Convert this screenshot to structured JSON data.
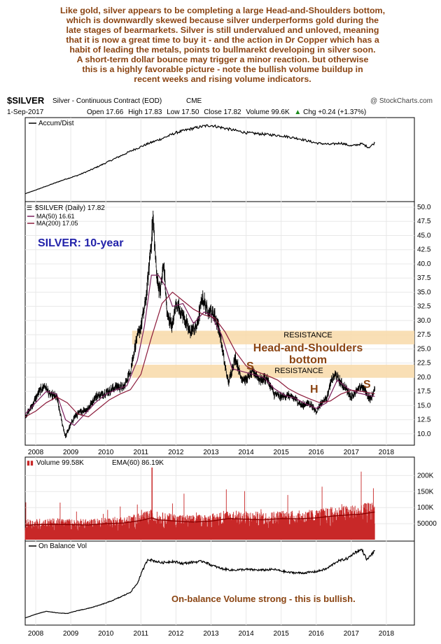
{
  "commentary": [
    "Like gold, silver appears to be completing a large Head-and-Shoulders bottom,",
    "which is downwardly skewed because silver underperforms gold during the",
    "late stages of bearmarkets. Silver is still undervalued and unloved, meaning",
    "that it is now a great time to buy it - and the action in Dr Copper which has a",
    "habit of leading the metals, points to bullmarekt developing in silver soon.",
    "A short-term dollar bounce may trigger a minor reaction. but otherwise",
    "this is a highly favorable picture - note the bullish volume buildup in",
    "recent weeks and rising volume indicators."
  ],
  "header": {
    "symbol": "$SILVER",
    "name": "Silver - Continuous Contract (EOD)",
    "exchange": "CME",
    "copyright": "@ StockCharts.com",
    "date": "1-Sep-2017",
    "open_label": "Open",
    "open": "17.66",
    "high_label": "High",
    "high": "17.83",
    "low_label": "Low",
    "low": "17.50",
    "close_label": "Close",
    "close": "17.82",
    "volume_label": "Volume",
    "volume": "99.6K",
    "chg_label": "Chg",
    "chg": "+0.24 (+1.37%)",
    "chg_arrow": "▲"
  },
  "colors": {
    "price": "#000000",
    "ma50": "#7b1f5c",
    "ma200": "#8b1a3a",
    "volume": "#c82828",
    "ema60": "#8b0000",
    "resistance": "#f8d9a8",
    "annotation_blue": "#2222aa",
    "annotation_brown": "#8b4513",
    "grid": "#e8e8e8"
  },
  "chart_data": [
    {
      "type": "line",
      "panel": "Accumulation/Distribution",
      "legend": "Accum/Dist",
      "x": [
        2007.7,
        2008.0,
        2008.4,
        2008.8,
        2009.2,
        2009.6,
        2010.0,
        2010.4,
        2010.8,
        2011.2,
        2011.6,
        2012.0,
        2012.4,
        2012.8,
        2013.0,
        2013.3,
        2013.6,
        2014.0,
        2014.5,
        2015.0,
        2015.5,
        2016.0,
        2016.4,
        2016.7,
        2017.0,
        2017.3,
        2017.5,
        2017.67
      ],
      "y": [
        5,
        10,
        17,
        24,
        30,
        38,
        47,
        56,
        65,
        73,
        80,
        88,
        93,
        97,
        98,
        95,
        92,
        88,
        86,
        84,
        80,
        74,
        72,
        74,
        70,
        73,
        68,
        74
      ]
    },
    {
      "type": "line",
      "panel": "Price",
      "title": "$SILVER (Daily) 17.82",
      "annotation_title": "SILVER: 10-year",
      "ylim": [
        8,
        50
      ],
      "y_ticks": [
        10.0,
        12.5,
        15.0,
        17.5,
        20.0,
        22.5,
        25.0,
        27.5,
        30.0,
        32.5,
        35.0,
        37.5,
        40.0,
        42.5,
        45.0,
        47.5,
        50.0
      ],
      "x_ticks": [
        "2008",
        "2009",
        "2010",
        "2011",
        "2012",
        "2013",
        "2014",
        "2015",
        "2016",
        "2017",
        "2018"
      ],
      "series": [
        {
          "name": "$SILVER (Daily)",
          "x": [
            2007.7,
            2007.9,
            2008.1,
            2008.25,
            2008.4,
            2008.6,
            2008.75,
            2008.85,
            2008.95,
            2009.1,
            2009.3,
            2009.5,
            2009.7,
            2009.9,
            2010.1,
            2010.3,
            2010.5,
            2010.7,
            2010.85,
            2011.0,
            2011.15,
            2011.3,
            2011.35,
            2011.45,
            2011.55,
            2011.65,
            2011.75,
            2011.9,
            2012.0,
            2012.2,
            2012.4,
            2012.6,
            2012.75,
            2012.9,
            2013.1,
            2013.25,
            2013.4,
            2013.5,
            2013.6,
            2013.7,
            2013.85,
            2014.0,
            2014.2,
            2014.4,
            2014.6,
            2014.8,
            2015.0,
            2015.2,
            2015.4,
            2015.6,
            2015.8,
            2016.0,
            2016.15,
            2016.3,
            2016.45,
            2016.55,
            2016.7,
            2016.85,
            2017.0,
            2017.15,
            2017.3,
            2017.45,
            2017.55,
            2017.67
          ],
          "y": [
            13.0,
            15.0,
            17.5,
            18.5,
            17.0,
            16.5,
            12.0,
            9.5,
            11.0,
            13.0,
            14.0,
            14.5,
            16.5,
            17.0,
            17.5,
            18.5,
            18.0,
            21.0,
            26.0,
            29.0,
            34.0,
            44.0,
            48.0,
            38.0,
            35.0,
            40.0,
            31.0,
            29.0,
            33.0,
            31.0,
            28.0,
            29.0,
            34.0,
            32.0,
            31.0,
            28.0,
            22.0,
            19.0,
            21.5,
            23.5,
            20.0,
            19.5,
            21.0,
            19.5,
            19.8,
            17.0,
            16.5,
            16.8,
            16.2,
            15.0,
            15.5,
            14.0,
            15.5,
            16.5,
            19.5,
            20.5,
            19.0,
            18.0,
            16.5,
            17.5,
            18.5,
            17.0,
            16.0,
            17.82
          ]
        },
        {
          "name": "MA(50) 16.61",
          "x": [
            2007.7,
            2008.0,
            2008.3,
            2008.6,
            2008.85,
            2009.1,
            2009.4,
            2009.7,
            2010.0,
            2010.3,
            2010.6,
            2010.9,
            2011.1,
            2011.3,
            2011.5,
            2011.7,
            2011.9,
            2012.2,
            2012.5,
            2012.8,
            2013.0,
            2013.3,
            2013.6,
            2013.9,
            2014.2,
            2014.5,
            2014.8,
            2015.1,
            2015.4,
            2015.7,
            2016.0,
            2016.3,
            2016.6,
            2016.9,
            2017.2,
            2017.5,
            2017.67
          ],
          "y": [
            13.5,
            15.5,
            17.5,
            17.0,
            12.5,
            11.5,
            13.5,
            15.5,
            17.0,
            17.8,
            18.5,
            23.0,
            29.0,
            38.0,
            38.0,
            36.0,
            32.5,
            33.0,
            29.5,
            31.5,
            31.0,
            27.5,
            21.5,
            21.0,
            20.5,
            20.0,
            18.0,
            16.8,
            16.3,
            15.3,
            14.5,
            15.5,
            19.5,
            18.0,
            17.2,
            16.8,
            16.61
          ]
        },
        {
          "name": "MA(200) 17.05",
          "x": [
            2007.7,
            2008.0,
            2008.3,
            2008.6,
            2008.9,
            2009.2,
            2009.5,
            2009.8,
            2010.1,
            2010.4,
            2010.7,
            2011.0,
            2011.3,
            2011.6,
            2011.9,
            2012.2,
            2012.5,
            2012.8,
            2013.1,
            2013.4,
            2013.7,
            2014.0,
            2014.3,
            2014.6,
            2014.9,
            2015.2,
            2015.5,
            2015.8,
            2016.1,
            2016.4,
            2016.7,
            2017.0,
            2017.3,
            2017.67
          ],
          "y": [
            13.0,
            14.0,
            15.5,
            16.5,
            15.5,
            13.5,
            13.0,
            14.5,
            16.0,
            17.0,
            17.8,
            20.5,
            27.0,
            33.0,
            35.0,
            33.5,
            32.0,
            31.0,
            30.5,
            28.0,
            24.5,
            22.0,
            21.0,
            20.3,
            19.5,
            18.0,
            17.0,
            16.2,
            15.5,
            15.8,
            17.0,
            17.7,
            17.5,
            17.05
          ]
        }
      ],
      "annotations": [
        "RESISTANCE",
        "RESISTANCE",
        "Head-and-Shoulders",
        "bottom",
        "S",
        "H",
        "S"
      ],
      "resistance_bands": [
        [
          25.8,
          28.2
        ],
        [
          19.9,
          22.2
        ]
      ]
    },
    {
      "type": "bar",
      "panel": "Volume",
      "legend_volume": "Volume 99.58K",
      "legend_ema": "EMA(60) 86.19K",
      "y_ticks_labels": [
        "50000",
        "100K",
        "150K",
        "200K"
      ],
      "y_ticks": [
        50000,
        100000,
        150000,
        200000
      ],
      "ylim": [
        0,
        240000
      ],
      "x": [
        2007.7,
        2008.0,
        2008.5,
        2009.0,
        2009.5,
        2010.0,
        2010.5,
        2011.0,
        2011.3,
        2011.5,
        2012.0,
        2012.5,
        2013.0,
        2013.5,
        2014.0,
        2014.5,
        2015.0,
        2015.5,
        2016.0,
        2016.5,
        2017.0,
        2017.3,
        2017.67
      ],
      "ema": [
        45000,
        47000,
        48000,
        47000,
        46000,
        50000,
        52000,
        60000,
        68000,
        62000,
        58000,
        55000,
        58000,
        66000,
        64000,
        62000,
        66000,
        65000,
        68000,
        74000,
        78000,
        80000,
        86190
      ]
    },
    {
      "type": "line",
      "panel": "On Balance Volume",
      "legend": "On Balance Vol",
      "annotation": "On-balance Volume strong - this is bullish.",
      "x": [
        2007.7,
        2008.0,
        2008.3,
        2008.6,
        2008.9,
        2009.2,
        2009.5,
        2009.8,
        2010.1,
        2010.4,
        2010.7,
        2010.9,
        2011.05,
        2011.2,
        2011.35,
        2011.6,
        2011.9,
        2012.2,
        2012.5,
        2012.8,
        2013.0,
        2013.3,
        2013.6,
        2014.0,
        2014.4,
        2014.8,
        2015.2,
        2015.6,
        2016.0,
        2016.3,
        2016.6,
        2016.9,
        2017.1,
        2017.3,
        2017.45,
        2017.55,
        2017.67
      ],
      "y": [
        5,
        10,
        14,
        12,
        11,
        15,
        18,
        22,
        27,
        33,
        40,
        52,
        70,
        85,
        83,
        80,
        82,
        79,
        81,
        82,
        77,
        72,
        70,
        71,
        70,
        71,
        67,
        66,
        68,
        72,
        82,
        86,
        94,
        98,
        84,
        90,
        96
      ]
    }
  ]
}
